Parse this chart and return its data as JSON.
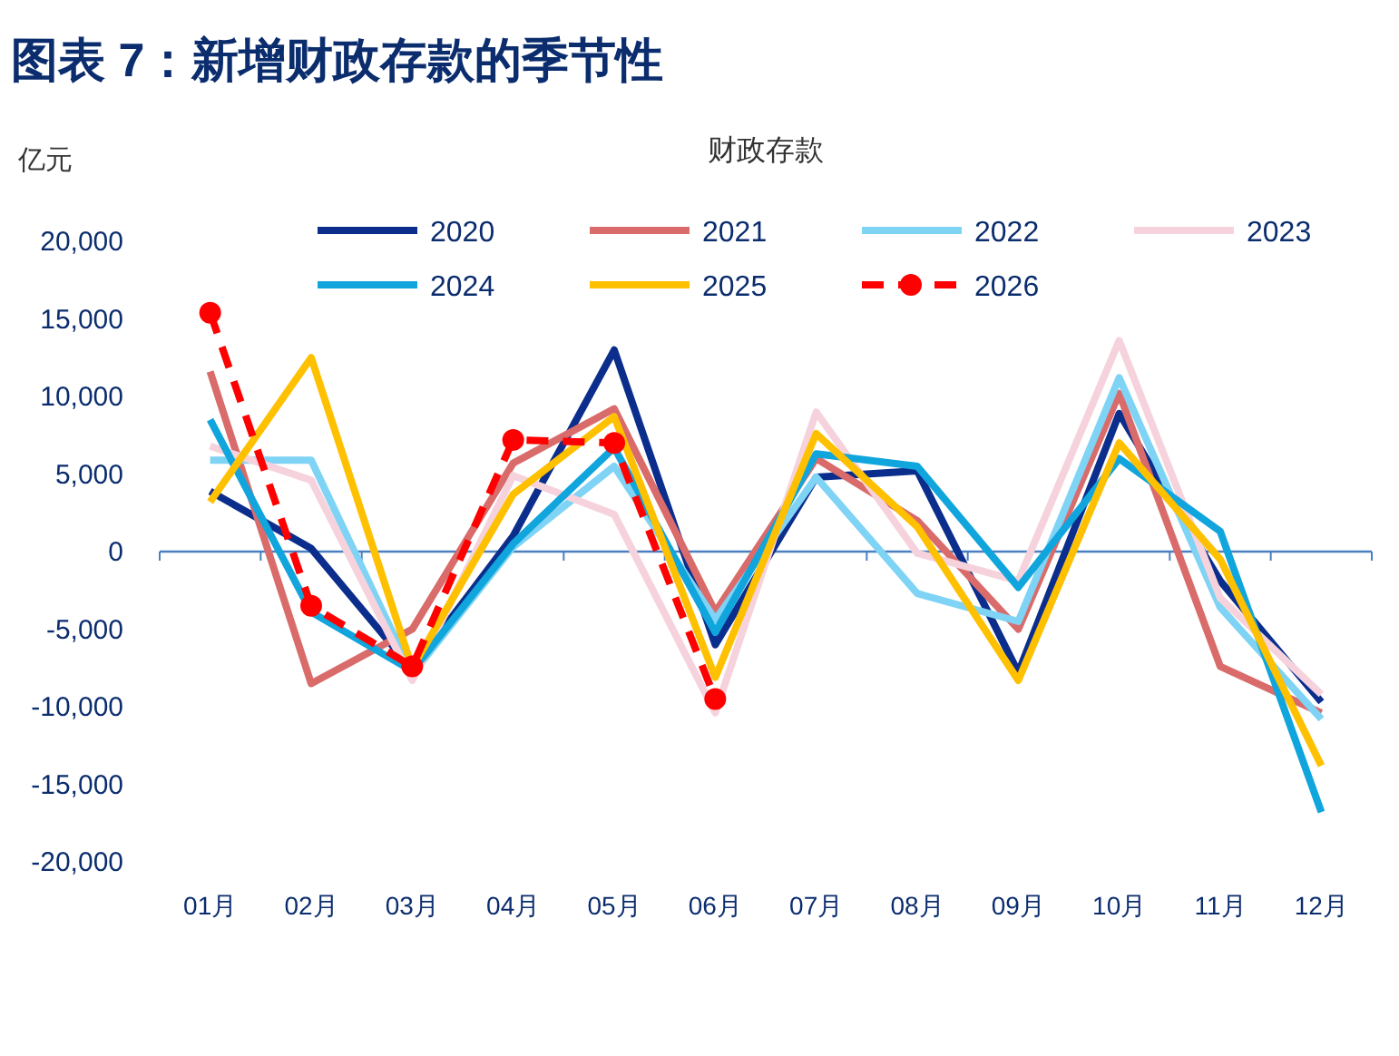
{
  "chart_data": {
    "type": "line",
    "title": "图表 7：新增财政存款的季节性",
    "subtitle": "财政存款",
    "ylabel": "亿元",
    "categories": [
      "01月",
      "02月",
      "03月",
      "04月",
      "05月",
      "06月",
      "07月",
      "08月",
      "09月",
      "10月",
      "11月",
      "12月"
    ],
    "ylim": [
      -20000,
      20000
    ],
    "yticks": [
      {
        "value": -20000,
        "label": "-20,000"
      },
      {
        "value": -15000,
        "label": "-15,000"
      },
      {
        "value": -10000,
        "label": "-10,000"
      },
      {
        "value": -5000,
        "label": "-5,000"
      },
      0,
      {
        "value": 5000,
        "label": "5,000"
      },
      {
        "value": 10000,
        "label": "10,000"
      },
      {
        "value": 15000,
        "label": "15,000"
      },
      {
        "value": 20000,
        "label": "20,000"
      }
    ],
    "legend": "top",
    "grid": false,
    "ref_lines": [
      {
        "axis": "y",
        "value": 0,
        "color": "#4a7fc1"
      }
    ],
    "series": [
      {
        "name": "2020",
        "color": "#0b2d8c",
        "values": [
          3900,
          200,
          -7600,
          1000,
          13000,
          -6000,
          4800,
          5200,
          -7800,
          8900,
          -1900,
          -9700
        ]
      },
      {
        "name": "2021",
        "color": "#d96b6b",
        "values": [
          11600,
          -8500,
          -5000,
          5700,
          9200,
          -3900,
          6000,
          2000,
          -5000,
          10200,
          -7400,
          -10400
        ]
      },
      {
        "name": "2022",
        "color": "#7fd3f5",
        "values": [
          5900,
          5900,
          -7900,
          300,
          5500,
          -4400,
          4800,
          -2700,
          -4500,
          11200,
          -3600,
          -10800
        ]
      },
      {
        "name": "2023",
        "color": "#f6d3dc",
        "values": [
          6800,
          4600,
          -8300,
          4900,
          2400,
          -10400,
          9000,
          -100,
          -1900,
          13600,
          -3000,
          -9200
        ]
      },
      {
        "name": "2024",
        "color": "#10a5dc",
        "values": [
          8500,
          -3900,
          -7700,
          500,
          6700,
          -5200,
          6300,
          5500,
          -2300,
          6000,
          1300,
          -16800
        ]
      },
      {
        "name": "2025",
        "color": "#ffc000",
        "values": [
          3200,
          12500,
          -7500,
          3700,
          8700,
          -8100,
          7600,
          1600,
          -8300,
          7000,
          -500,
          -13800
        ]
      },
      {
        "name": "2026",
        "color": "#ff0000",
        "marker": "circle",
        "line_style": "dashed",
        "values": [
          15400,
          -3500,
          -7400,
          7200,
          7000,
          -9500,
          null,
          null,
          null,
          null,
          null,
          null
        ]
      }
    ]
  }
}
